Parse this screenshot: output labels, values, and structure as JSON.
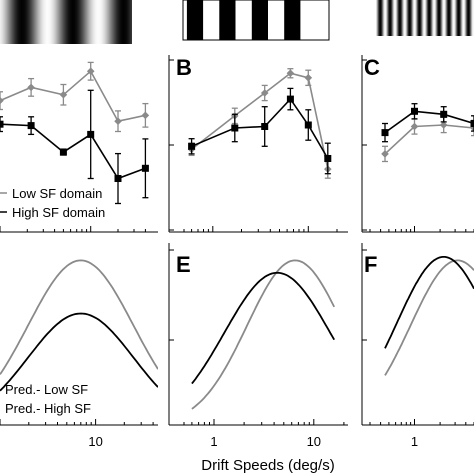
{
  "colors": {
    "low_sf": "#8a8a8a",
    "high_sf": "#000000",
    "axis": "#000000"
  },
  "x_axis_label": "Drift Speeds (deg/s)",
  "legend_measured": {
    "low": "Low SF domain",
    "high": "High SF domain"
  },
  "legend_predicted": {
    "low": "Pred.- Low SF",
    "high": "Pred.- High SF"
  },
  "stimulus_gratings": [
    {
      "label": "low spatial frequency grating",
      "cycles": 2.6,
      "profile": "sine"
    },
    {
      "label": "medium spatial frequency grating",
      "cycles": 4.5,
      "profile": "square"
    },
    {
      "label": "high spatial frequency grating",
      "cycles": 10,
      "profile": "sine"
    }
  ],
  "chart_data": [
    {
      "panel": "A",
      "type": "line",
      "row": "measured",
      "x_scale": "log",
      "letter_shown": false,
      "xlim": [
        1,
        45
      ],
      "ylim": [
        0,
        1
      ],
      "x_ticks": [],
      "series": [
        {
          "name": "Low SF domain",
          "marker": "diamond",
          "x": [
            1,
            2.2,
            5,
            10,
            20,
            40
          ],
          "y": [
            0.93,
            1.02,
            0.97,
            1.13,
            0.79,
            0.83
          ],
          "err": [
            0.06,
            0.06,
            0.07,
            0.06,
            0.07,
            0.08
          ]
        },
        {
          "name": "High SF domain",
          "marker": "square",
          "x": [
            1,
            2.2,
            5,
            10,
            20,
            40
          ],
          "y": [
            0.77,
            0.76,
            0.58,
            0.7,
            0.4,
            0.47
          ],
          "err": [
            0.05,
            0.06,
            0.02,
            0.3,
            0.17,
            0.2
          ]
        }
      ]
    },
    {
      "panel": "B",
      "type": "line",
      "row": "measured",
      "x_scale": "log",
      "letter_shown": true,
      "xlim": [
        0.5,
        22
      ],
      "ylim": [
        0,
        1
      ],
      "x_ticks": [],
      "series": [
        {
          "name": "Low SF domain",
          "marker": "diamond",
          "x": [
            0.6,
            1.7,
            3.5,
            6.5,
            10,
            16
          ],
          "y": [
            0.58,
            0.8,
            0.95,
            1.08,
            1.05,
            0.45
          ],
          "err": [
            0.04,
            0.05,
            0.05,
            0.03,
            0.05,
            0.06
          ]
        },
        {
          "name": "High SF domain",
          "marker": "square",
          "x": [
            0.6,
            1.7,
            3.5,
            6.5,
            10,
            16
          ],
          "y": [
            0.6,
            0.72,
            0.73,
            0.91,
            0.74,
            0.52
          ],
          "err": [
            0.05,
            0.09,
            0.13,
            0.07,
            0.1,
            0.1
          ]
        }
      ]
    },
    {
      "panel": "C",
      "type": "line",
      "row": "measured",
      "x_scale": "log",
      "letter_shown": true,
      "xlim": [
        0.3,
        5
      ],
      "ylim": [
        0,
        1
      ],
      "x_ticks": [],
      "series": [
        {
          "name": "Low SF domain",
          "marker": "diamond",
          "x": [
            0.45,
            1,
            2.2,
            5
          ],
          "y": [
            0.55,
            0.73,
            0.74,
            0.72
          ],
          "err": [
            0.05,
            0.05,
            0.05,
            0.05
          ]
        },
        {
          "name": "High SF domain",
          "marker": "square",
          "x": [
            0.45,
            1,
            2.2,
            5
          ],
          "y": [
            0.69,
            0.83,
            0.81,
            0.75
          ],
          "err": [
            0.06,
            0.05,
            0.05,
            0.05
          ]
        }
      ]
    },
    {
      "panel": "D",
      "type": "line",
      "row": "predicted",
      "x_scale": "log",
      "letter_shown": false,
      "xlim": [
        1,
        45
      ],
      "ylim": [
        0,
        1
      ],
      "x_ticks": [
        "10"
      ],
      "x_tick_values": [
        10
      ],
      "series": [
        {
          "name": "Pred.- Low SF",
          "peak": 0.93,
          "peak_x": 7,
          "width": 0.55,
          "x_range": [
            1,
            45
          ]
        },
        {
          "name": "Pred.- High SF",
          "peak": 0.63,
          "peak_x": 7,
          "width": 0.55,
          "x_range": [
            1,
            45
          ]
        }
      ]
    },
    {
      "panel": "E",
      "type": "line",
      "row": "predicted",
      "x_scale": "log",
      "letter_shown": true,
      "xlim": [
        0.5,
        22
      ],
      "ylim": [
        0,
        1
      ],
      "x_ticks": [
        "1",
        "10"
      ],
      "x_tick_values": [
        1,
        10
      ],
      "series": [
        {
          "name": "Pred.- Low SF",
          "peak": 0.93,
          "peak_x": 6.5,
          "width": 0.48,
          "x_range": [
            0.6,
            16
          ]
        },
        {
          "name": "Pred.- High SF",
          "peak": 0.86,
          "peak_x": 4.3,
          "width": 0.53,
          "x_range": [
            0.6,
            16
          ]
        }
      ]
    },
    {
      "panel": "F",
      "type": "line",
      "row": "predicted",
      "x_scale": "log",
      "letter_shown": true,
      "xlim": [
        0.3,
        5
      ],
      "ylim": [
        0,
        1
      ],
      "x_ticks": [
        "1"
      ],
      "x_tick_values": [
        1
      ],
      "series": [
        {
          "name": "Pred.- Low SF",
          "peak": 0.93,
          "peak_x": 3.2,
          "width": 0.55,
          "x_range": [
            0.45,
            5
          ]
        },
        {
          "name": "Pred.- High SF",
          "peak": 0.95,
          "peak_x": 2.2,
          "width": 0.55,
          "x_range": [
            0.45,
            5
          ]
        }
      ]
    }
  ]
}
